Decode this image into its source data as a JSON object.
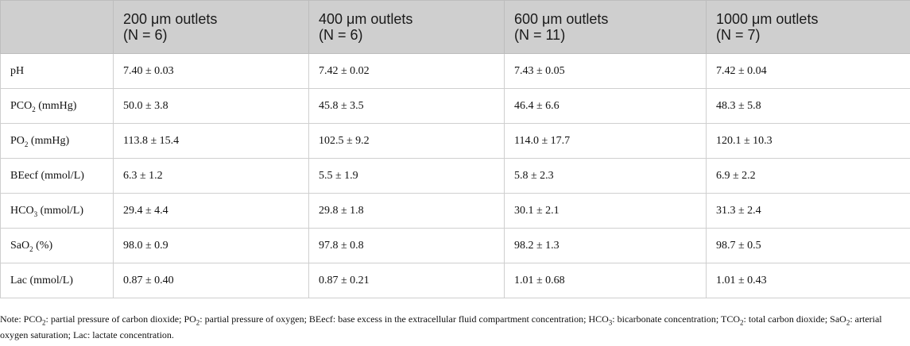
{
  "table": {
    "headers": [
      {
        "line1": "",
        "line2": ""
      },
      {
        "line1": "200 μm outlets",
        "line2": "(N = 6)"
      },
      {
        "line1": "400 μm outlets",
        "line2": "(N = 6)"
      },
      {
        "line1": "600 μm outlets",
        "line2": "(N = 11)"
      },
      {
        "line1": "1000 μm outlets",
        "line2": "(N = 7)"
      }
    ],
    "rows": [
      {
        "label_main": "pH",
        "label_sub": "",
        "label_tail": "",
        "values": [
          "7.40 ± 0.03",
          "7.42 ± 0.02",
          "7.43 ± 0.05",
          "7.42 ± 0.04"
        ]
      },
      {
        "label_main": "PCO",
        "label_sub": "2",
        "label_tail": " (mmHg)",
        "values": [
          "50.0 ± 3.8",
          "45.8 ± 3.5",
          "46.4 ± 6.6",
          "48.3 ± 5.8"
        ]
      },
      {
        "label_main": "PO",
        "label_sub": "2",
        "label_tail": " (mmHg)",
        "values": [
          "113.8 ± 15.4",
          "102.5 ± 9.2",
          "114.0 ± 17.7",
          "120.1 ± 10.3"
        ]
      },
      {
        "label_main": "BEecf (mmol/L)",
        "label_sub": "",
        "label_tail": "",
        "values": [
          "6.3 ± 1.2",
          "5.5 ± 1.9",
          "5.8 ± 2.3",
          "6.9 ± 2.2"
        ]
      },
      {
        "label_main": "HCO",
        "label_sub": "3",
        "label_tail": " (mmol/L)",
        "values": [
          "29.4 ± 4.4",
          "29.8 ± 1.8",
          "30.1 ± 2.1",
          "31.3 ± 2.4"
        ]
      },
      {
        "label_main": "SaO",
        "label_sub": "2",
        "label_tail": " (%)",
        "values": [
          "98.0 ± 0.9",
          "97.8 ± 0.8",
          "98.2 ± 1.3",
          "98.7 ± 0.5"
        ]
      },
      {
        "label_main": "Lac (mmol/L)",
        "label_sub": "",
        "label_tail": "",
        "values": [
          "0.87 ± 0.40",
          "0.87 ± 0.21",
          "1.01 ± 0.68",
          "1.01 ± 0.43"
        ]
      }
    ]
  },
  "note": {
    "p1": "Note: PCO",
    "s1": "2",
    "p2": ": partial pressure of carbon dioxide; PO",
    "s2": "2",
    "p3": ": partial pressure of oxygen; BEecf: base excess in the extracellular fluid compartment concentration; HCO",
    "s3": "3",
    "p4": ": bicarbonate concentration; TCO",
    "s4": "2",
    "p5": ": total carbon dioxide; SaO",
    "s5": "2",
    "p6": ": arterial oxygen saturation; Lac: lactate concentration."
  }
}
